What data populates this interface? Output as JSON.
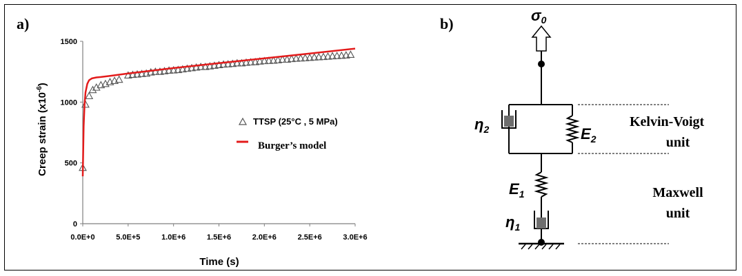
{
  "panels": {
    "a_label": "a)",
    "b_label": "b)"
  },
  "chart_data": {
    "type": "scatter",
    "xlabel": "Time (s)",
    "ylabel": "Creep strain (x10",
    "ylabel_sup": "-6",
    "ylabel_close": ")",
    "xlim": [
      0,
      3000000
    ],
    "ylim": [
      0,
      1500
    ],
    "x_ticks": [
      0,
      500000,
      1000000,
      1500000,
      2000000,
      2500000,
      3000000
    ],
    "x_tick_labels": [
      "0.0E+0",
      "5.0E+5",
      "1.0E+6",
      "1.5E+6",
      "2.0E+6",
      "2.5E+6",
      "3.0E+6"
    ],
    "y_ticks": [
      0,
      500,
      1000,
      1500
    ],
    "y_tick_labels": [
      "0",
      "500",
      "1000",
      "1500"
    ],
    "grid": false,
    "legend_position": "right-middle",
    "series": [
      {
        "name": "TTSP (25°C , 5 MPa)",
        "kind": "scatter",
        "marker": "open-triangle",
        "color": "#555555",
        "x": [
          0,
          30000,
          70000,
          110000,
          150000,
          200000,
          250000,
          300000,
          350000,
          400000,
          500000,
          550000,
          600000,
          650000,
          700000,
          750000,
          800000,
          850000,
          900000,
          950000,
          1000000,
          1050000,
          1100000,
          1150000,
          1200000,
          1250000,
          1300000,
          1350000,
          1400000,
          1450000,
          1500000,
          1550000,
          1600000,
          1650000,
          1700000,
          1750000,
          1800000,
          1850000,
          1900000,
          1950000,
          2000000,
          2050000,
          2100000,
          2150000,
          2200000,
          2250000,
          2300000,
          2350000,
          2400000,
          2450000,
          2500000,
          2550000,
          2600000,
          2650000,
          2700000,
          2750000,
          2800000,
          2850000,
          2900000,
          2950000
        ],
        "y": [
          460,
          980,
          1050,
          1100,
          1120,
          1140,
          1150,
          1165,
          1175,
          1185,
          1220,
          1225,
          1228,
          1232,
          1235,
          1245,
          1250,
          1250,
          1255,
          1260,
          1262,
          1265,
          1270,
          1275,
          1280,
          1285,
          1290,
          1290,
          1295,
          1300,
          1305,
          1310,
          1312,
          1315,
          1320,
          1320,
          1325,
          1328,
          1330,
          1335,
          1338,
          1340,
          1342,
          1345,
          1350,
          1350,
          1355,
          1358,
          1360,
          1362,
          1365,
          1368,
          1370,
          1372,
          1375,
          1378,
          1380,
          1382,
          1385,
          1390
        ]
      },
      {
        "name": "Burger’s model",
        "kind": "line",
        "color": "#e31b1b",
        "x": [
          0,
          10000,
          20000,
          30000,
          50000,
          70000,
          100000,
          150000,
          200000,
          300000,
          500000,
          1000000,
          1500000,
          2000000,
          2500000,
          3000000
        ],
        "y": [
          390,
          800,
          980,
          1080,
          1150,
          1180,
          1195,
          1203,
          1206,
          1215,
          1235,
          1280,
          1320,
          1360,
          1400,
          1440
        ]
      }
    ]
  },
  "diagram": {
    "stress_symbol": "σ",
    "stress_sub": "0",
    "eta2_symbol": "η",
    "eta2_sub": "2",
    "e2_symbol": "E",
    "e2_sub": "2",
    "e1_symbol": "E",
    "e1_sub": "1",
    "eta1_symbol": "η",
    "eta1_sub": "1",
    "kelvin_line1": "Kelvin-Voigt",
    "kelvin_line2": "unit",
    "maxwell_line1": "Maxwell",
    "maxwell_line2": "unit"
  }
}
